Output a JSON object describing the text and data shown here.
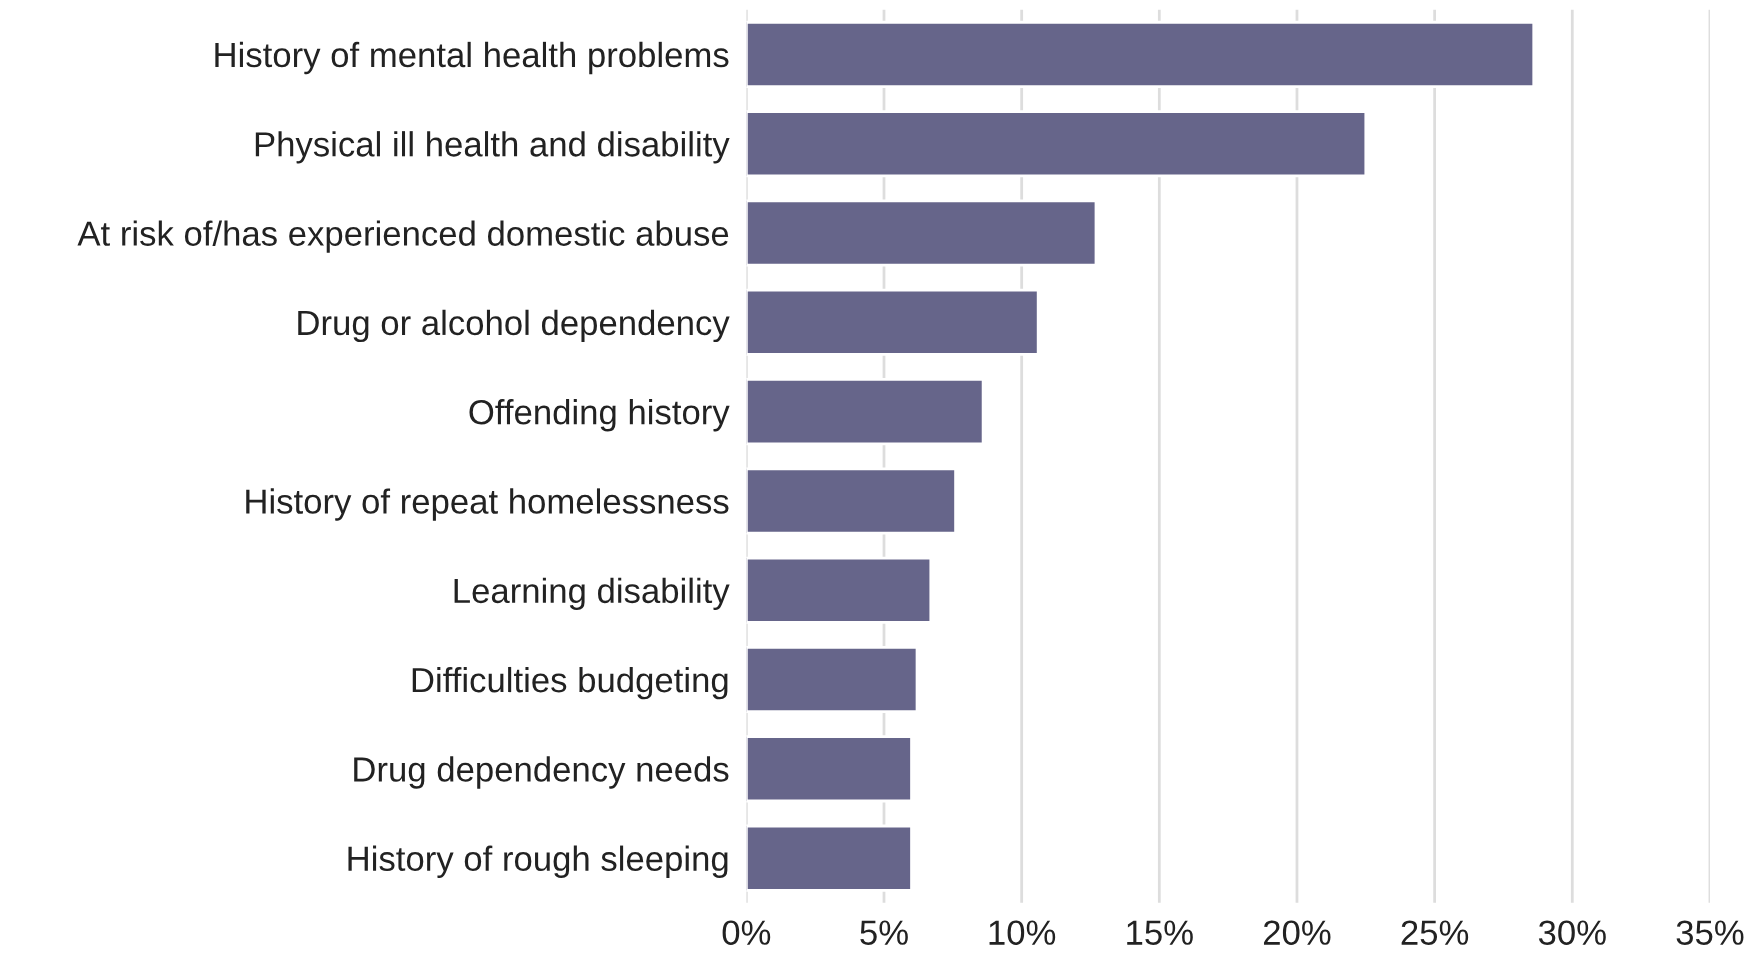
{
  "chart_data": {
    "type": "bar",
    "orientation": "horizontal",
    "categories": [
      "History of mental health problems",
      "Physical ill health and disability",
      "At risk of/has experienced domestic abuse",
      "Drug or alcohol dependency",
      "Offending history",
      "History of repeat homelessness",
      "Learning disability",
      "Difficulties budgeting",
      "Drug dependency needs",
      "History of rough sleeping"
    ],
    "values": [
      28.6,
      22.5,
      12.7,
      10.6,
      8.6,
      7.6,
      6.7,
      6.2,
      6.0,
      6.0
    ],
    "color": "#66658a",
    "xlim": [
      0,
      35
    ],
    "xticks": [
      {
        "value": 0,
        "label": "0%"
      },
      {
        "value": 5,
        "label": "5%"
      },
      {
        "value": 10,
        "label": "10%"
      },
      {
        "value": 15,
        "label": "15%"
      },
      {
        "value": 20,
        "label": "20%"
      },
      {
        "value": 25,
        "label": "25%"
      },
      {
        "value": 30,
        "label": "30%"
      },
      {
        "value": 35,
        "label": "35%"
      }
    ],
    "grid": "x",
    "legend": false
  }
}
